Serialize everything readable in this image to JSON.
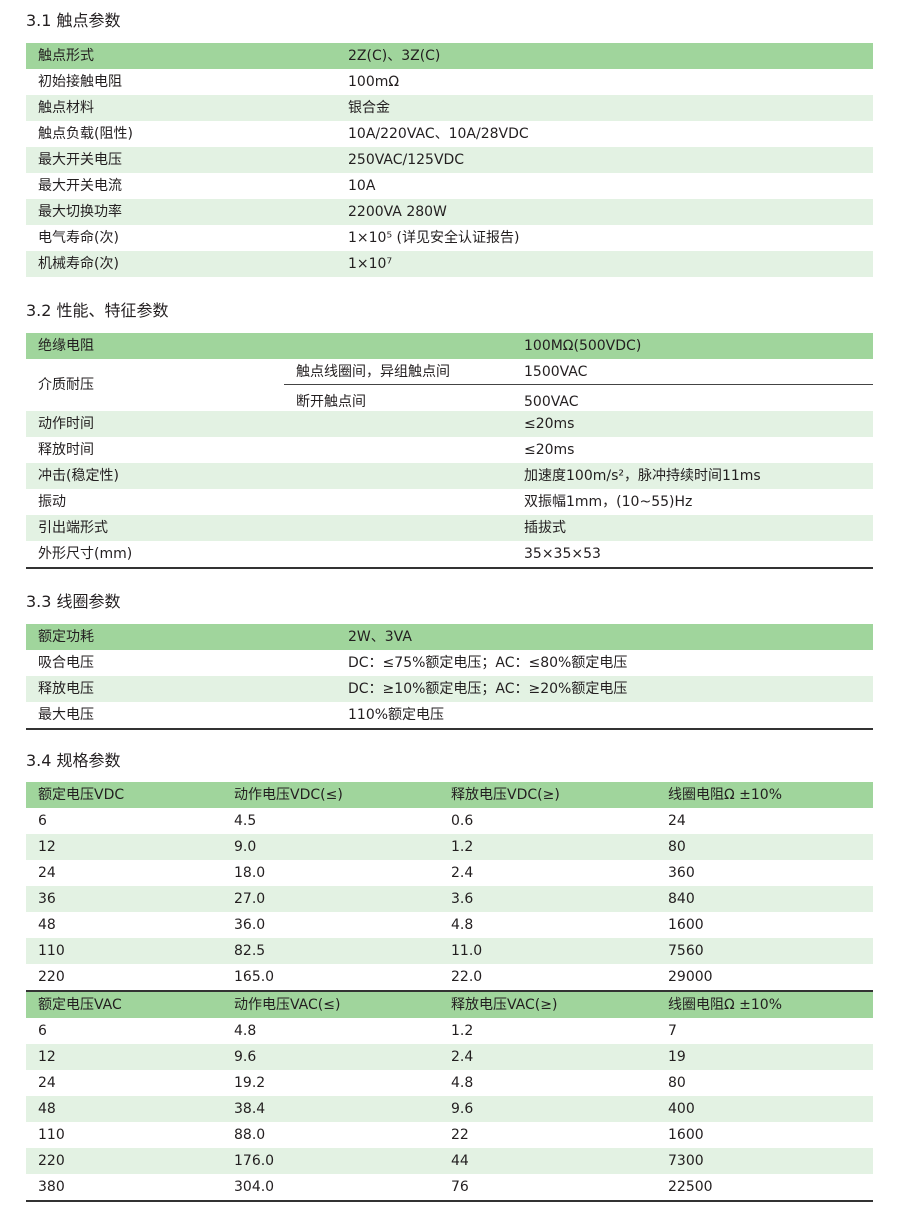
{
  "colors": {
    "header": "#a0d59c",
    "stripe": "#e3f2e3"
  },
  "s31": {
    "title": "3.1 触点参数",
    "rows": [
      [
        "触点形式",
        "2Z(C)、3Z(C)"
      ],
      [
        "初始接触电阻",
        "100mΩ"
      ],
      [
        "触点材料",
        "银合金"
      ],
      [
        "触点负载(阻性)",
        "10A/220VAC、10A/28VDC"
      ],
      [
        "最大开关电压",
        "250VAC/125VDC"
      ],
      [
        "最大开关电流",
        "10A"
      ],
      [
        "最大切换功率",
        "2200VA   280W"
      ],
      [
        "电气寿命(次)",
        "1×10⁵  (详见安全认证报告)"
      ],
      [
        "机械寿命(次)",
        "1×10⁷"
      ]
    ]
  },
  "s32": {
    "title": "3.2 性能、特征参数",
    "insulation": [
      "绝缘电阻",
      "100MΩ(500VDC)"
    ],
    "dielectric": {
      "label": "介质耐压",
      "sub": [
        [
          "触点线圈间，异组触点间",
          "1500VAC"
        ],
        [
          "断开触点间",
          "500VAC"
        ]
      ]
    },
    "rows": [
      [
        "动作时间",
        "≤20ms"
      ],
      [
        "释放时间",
        "≤20ms"
      ],
      [
        "冲击(稳定性)",
        "加速度100m/s²，脉冲持续时间11ms"
      ],
      [
        "振动",
        "双振幅1mm，(10~55)Hz"
      ],
      [
        "引出端形式",
        "插拔式"
      ],
      [
        "外形尺寸(mm)",
        "35×35×53"
      ]
    ]
  },
  "s33": {
    "title": "3.3 线圈参数",
    "rows": [
      [
        "额定功耗",
        "2W、3VA"
      ],
      [
        "吸合电压",
        "DC：≤75%额定电压；AC：≤80%额定电压"
      ],
      [
        "释放电压",
        "DC：≥10%额定电压；AC：≥20%额定电压"
      ],
      [
        "最大电压",
        "110%额定电压"
      ]
    ]
  },
  "s34": {
    "title": "3.4 规格参数",
    "dc": {
      "headers": [
        "额定电压VDC",
        "动作电压VDC(≤)",
        "释放电压VDC(≥)",
        "线圈电阻Ω ±10%"
      ],
      "rows": [
        [
          "6",
          "4.5",
          "0.6",
          "24"
        ],
        [
          "12",
          "9.0",
          "1.2",
          "80"
        ],
        [
          "24",
          "18.0",
          "2.4",
          "360"
        ],
        [
          "36",
          "27.0",
          "3.6",
          "840"
        ],
        [
          "48",
          "36.0",
          "4.8",
          "1600"
        ],
        [
          "110",
          "82.5",
          "11.0",
          "7560"
        ],
        [
          "220",
          "165.0",
          "22.0",
          "29000"
        ]
      ]
    },
    "ac": {
      "headers": [
        "额定电压VAC",
        "动作电压VAC(≤)",
        "释放电压VAC(≥)",
        "线圈电阻Ω ±10%"
      ],
      "rows": [
        [
          "6",
          "4.8",
          "1.2",
          "7"
        ],
        [
          "12",
          "9.6",
          "2.4",
          "19"
        ],
        [
          "24",
          "19.2",
          "4.8",
          "80"
        ],
        [
          "48",
          "38.4",
          "9.6",
          "400"
        ],
        [
          "110",
          "88.0",
          "22",
          "1600"
        ],
        [
          "220",
          "176.0",
          "44",
          "7300"
        ],
        [
          "380",
          "304.0",
          "76",
          "22500"
        ]
      ]
    }
  }
}
